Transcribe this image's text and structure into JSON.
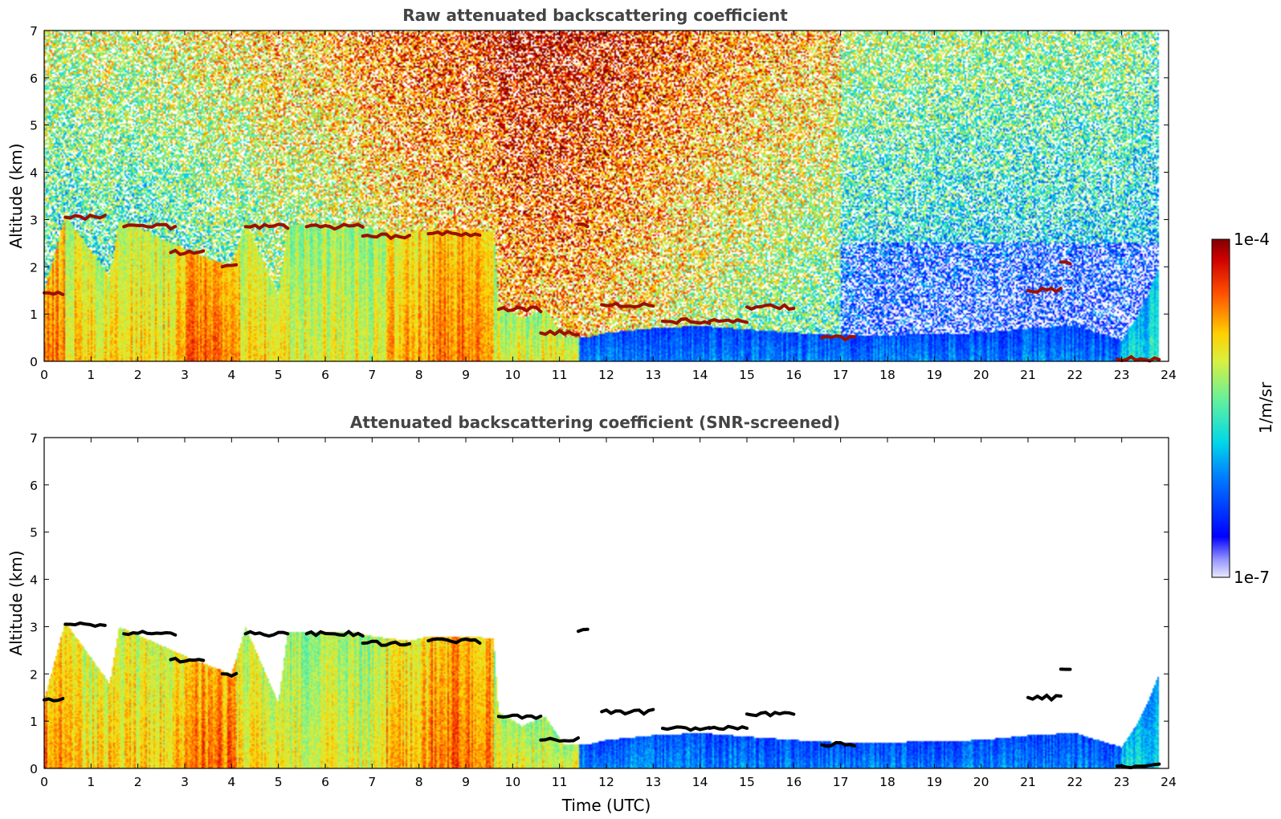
{
  "chart_data": [
    {
      "type": "heatmap",
      "title": "Raw attenuated backscattering coefficient",
      "xlabel": "",
      "ylabel": "Altitude (km)",
      "xlim": [
        0,
        24
      ],
      "ylim": [
        0,
        7
      ],
      "xticks": [
        "0",
        "1",
        "2",
        "3",
        "4",
        "5",
        "6",
        "7",
        "8",
        "9",
        "10",
        "11",
        "12",
        "13",
        "14",
        "15",
        "16",
        "17",
        "18",
        "19",
        "20",
        "21",
        "22",
        "23",
        "24"
      ],
      "yticks": [
        "0",
        "1",
        "2",
        "3",
        "4",
        "5",
        "6",
        "7"
      ],
      "data_span_hours": [
        0,
        23.8
      ],
      "screened": false,
      "grid": false,
      "aerosol_layer_top_km": [
        [
          0,
          1.45
        ],
        [
          0.45,
          3.1
        ],
        [
          1.4,
          1.8
        ],
        [
          1.6,
          3.0
        ],
        [
          3.2,
          2.3
        ],
        [
          4.0,
          2.0
        ],
        [
          4.3,
          3.0
        ],
        [
          5.0,
          1.4
        ],
        [
          5.2,
          2.9
        ],
        [
          6.5,
          2.9
        ],
        [
          7.0,
          2.8
        ],
        [
          7.8,
          2.7
        ],
        [
          8.2,
          2.8
        ],
        [
          9.0,
          2.8
        ],
        [
          9.6,
          2.75
        ],
        [
          9.7,
          1.2
        ],
        [
          10.2,
          0.9
        ],
        [
          10.7,
          1.1
        ],
        [
          11.1,
          0.5
        ],
        [
          11.6,
          0.5
        ],
        [
          12.0,
          0.6
        ],
        [
          13.0,
          0.7
        ],
        [
          14.0,
          0.75
        ],
        [
          16.0,
          0.6
        ],
        [
          17.0,
          0.55
        ],
        [
          18.0,
          0.55
        ],
        [
          20.0,
          0.6
        ],
        [
          21.0,
          0.7
        ],
        [
          22.0,
          0.75
        ],
        [
          23.0,
          0.45
        ],
        [
          23.3,
          0.9
        ],
        [
          23.6,
          1.5
        ],
        [
          23.8,
          2.0
        ]
      ],
      "cloud_layers_km": [
        {
          "t0": 0.0,
          "t1": 0.4,
          "alt": 1.45
        },
        {
          "t0": 0.45,
          "t1": 1.3,
          "alt": 3.05
        },
        {
          "t0": 1.7,
          "t1": 2.8,
          "alt": 2.85
        },
        {
          "t0": 2.7,
          "t1": 3.4,
          "alt": 2.3
        },
        {
          "t0": 3.8,
          "t1": 4.1,
          "alt": 2.0
        },
        {
          "t0": 4.3,
          "t1": 5.2,
          "alt": 2.85
        },
        {
          "t0": 5.6,
          "t1": 6.8,
          "alt": 2.85
        },
        {
          "t0": 6.8,
          "t1": 7.8,
          "alt": 2.65
        },
        {
          "t0": 8.2,
          "t1": 9.3,
          "alt": 2.7
        },
        {
          "t0": 9.7,
          "t1": 10.6,
          "alt": 1.1
        },
        {
          "t0": 10.6,
          "t1": 11.4,
          "alt": 0.6
        },
        {
          "t0": 11.4,
          "t1": 11.6,
          "alt": 2.9
        },
        {
          "t0": 11.9,
          "t1": 13.0,
          "alt": 1.2
        },
        {
          "t0": 13.2,
          "t1": 14.2,
          "alt": 0.85
        },
        {
          "t0": 14.2,
          "t1": 15.0,
          "alt": 0.85
        },
        {
          "t0": 15.0,
          "t1": 16.0,
          "alt": 1.15
        },
        {
          "t0": 16.6,
          "t1": 17.3,
          "alt": 0.5
        },
        {
          "t0": 21.0,
          "t1": 21.7,
          "alt": 1.5
        },
        {
          "t0": 21.7,
          "t1": 21.9,
          "alt": 2.1
        },
        {
          "t0": 22.9,
          "t1": 23.8,
          "alt": 0.05
        }
      ]
    },
    {
      "type": "heatmap",
      "title": "Attenuated backscattering coefficient (SNR-screened)",
      "xlabel": "Time (UTC)",
      "ylabel": "Altitude (km)",
      "xlim": [
        0,
        24
      ],
      "ylim": [
        0,
        7
      ],
      "xticks": [
        "0",
        "1",
        "2",
        "3",
        "4",
        "5",
        "6",
        "7",
        "8",
        "9",
        "10",
        "11",
        "12",
        "13",
        "14",
        "15",
        "16",
        "17",
        "18",
        "19",
        "20",
        "21",
        "22",
        "23",
        "24"
      ],
      "yticks": [
        "0",
        "1",
        "2",
        "3",
        "4",
        "5",
        "6",
        "7"
      ],
      "data_span_hours": [
        0,
        23.8
      ],
      "screened": true,
      "grid": false
    }
  ],
  "colorbar": {
    "min_label": "1e-7",
    "max_label": "1e-4",
    "label": "1/m/sr",
    "scale": "log",
    "colormap": "jet"
  },
  "colors": {
    "background": "#ffffff",
    "title": "#444444",
    "cloud_edge": "#000000"
  }
}
